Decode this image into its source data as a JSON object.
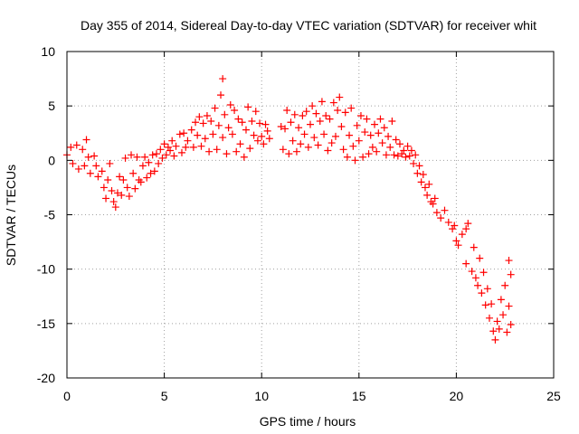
{
  "chart_data": {
    "type": "scatter",
    "title": "Day 355 of 2014, Sidereal Day-to-day VTEC variation (SDTVAR) for receiver whit",
    "xlabel": "GPS time / hours",
    "ylabel": "SDTVAR / TECUs",
    "xlim": [
      0,
      25
    ],
    "ylim": [
      -20,
      10
    ],
    "xticks": [
      0,
      5,
      10,
      15,
      20,
      25
    ],
    "yticks": [
      -20,
      -15,
      -10,
      -5,
      0,
      5,
      10
    ],
    "grid": true,
    "marker": "+",
    "color": "#ff0000",
    "series": [
      {
        "name": "SDTVAR",
        "points": [
          [
            0.0,
            0.5
          ],
          [
            0.2,
            1.2
          ],
          [
            0.3,
            -0.3
          ],
          [
            0.5,
            1.4
          ],
          [
            0.6,
            -0.8
          ],
          [
            0.8,
            1.0
          ],
          [
            0.9,
            -0.5
          ],
          [
            1.0,
            1.9
          ],
          [
            1.1,
            0.3
          ],
          [
            1.2,
            -1.2
          ],
          [
            1.4,
            0.4
          ],
          [
            1.5,
            -0.5
          ],
          [
            1.6,
            -1.5
          ],
          [
            1.8,
            -1.0
          ],
          [
            1.9,
            -2.5
          ],
          [
            2.0,
            -3.5
          ],
          [
            2.1,
            -1.8
          ],
          [
            2.2,
            -0.3
          ],
          [
            2.3,
            -2.8
          ],
          [
            2.4,
            -3.8
          ],
          [
            2.5,
            -4.3
          ],
          [
            2.6,
            -3.0
          ],
          [
            2.7,
            -1.5
          ],
          [
            2.8,
            -3.2
          ],
          [
            2.9,
            -1.8
          ],
          [
            3.0,
            0.2
          ],
          [
            3.1,
            -2.5
          ],
          [
            3.2,
            -3.3
          ],
          [
            3.3,
            0.5
          ],
          [
            3.4,
            -1.2
          ],
          [
            3.5,
            -2.6
          ],
          [
            3.6,
            0.3
          ],
          [
            3.7,
            -1.8
          ],
          [
            3.8,
            -2.0
          ],
          [
            3.9,
            -0.5
          ],
          [
            4.0,
            0.3
          ],
          [
            4.1,
            -1.6
          ],
          [
            4.2,
            -0.2
          ],
          [
            4.3,
            -1.2
          ],
          [
            4.4,
            0.5
          ],
          [
            4.5,
            -1.0
          ],
          [
            4.6,
            0.6
          ],
          [
            4.7,
            -0.3
          ],
          [
            4.8,
            1.0
          ],
          [
            4.9,
            0.2
          ],
          [
            5.0,
            1.5
          ],
          [
            5.1,
            0.5
          ],
          [
            5.2,
            1.2
          ],
          [
            5.3,
            0.9
          ],
          [
            5.4,
            1.8
          ],
          [
            5.5,
            0.4
          ],
          [
            5.6,
            1.3
          ],
          [
            5.8,
            2.4
          ],
          [
            5.9,
            0.7
          ],
          [
            6.0,
            2.5
          ],
          [
            6.1,
            1.2
          ],
          [
            6.2,
            1.8
          ],
          [
            6.4,
            2.8
          ],
          [
            6.5,
            1.2
          ],
          [
            6.6,
            3.5
          ],
          [
            6.7,
            2.3
          ],
          [
            6.8,
            4.0
          ],
          [
            6.9,
            1.3
          ],
          [
            7.0,
            3.4
          ],
          [
            7.1,
            2.0
          ],
          [
            7.2,
            4.1
          ],
          [
            7.3,
            0.8
          ],
          [
            7.4,
            3.6
          ],
          [
            7.5,
            2.4
          ],
          [
            7.6,
            4.8
          ],
          [
            7.7,
            1.0
          ],
          [
            7.8,
            3.2
          ],
          [
            7.9,
            6.0
          ],
          [
            8.0,
            2.1
          ],
          [
            8.0,
            7.5
          ],
          [
            8.1,
            4.2
          ],
          [
            8.2,
            0.6
          ],
          [
            8.3,
            3.0
          ],
          [
            8.4,
            5.1
          ],
          [
            8.5,
            2.4
          ],
          [
            8.6,
            4.6
          ],
          [
            8.7,
            0.8
          ],
          [
            8.8,
            3.8
          ],
          [
            8.9,
            1.5
          ],
          [
            9.0,
            3.5
          ],
          [
            9.1,
            0.3
          ],
          [
            9.2,
            2.8
          ],
          [
            9.3,
            4.9
          ],
          [
            9.4,
            1.1
          ],
          [
            9.5,
            3.6
          ],
          [
            9.6,
            2.3
          ],
          [
            9.7,
            4.5
          ],
          [
            9.8,
            1.8
          ],
          [
            9.9,
            3.4
          ],
          [
            10.0,
            2.2
          ],
          [
            10.1,
            1.5
          ],
          [
            10.2,
            3.3
          ],
          [
            10.3,
            2.7
          ],
          [
            10.4,
            2.0
          ],
          [
            11.0,
            3.1
          ],
          [
            11.1,
            1.0
          ],
          [
            11.2,
            2.9
          ],
          [
            11.3,
            4.6
          ],
          [
            11.4,
            0.6
          ],
          [
            11.5,
            3.5
          ],
          [
            11.6,
            1.8
          ],
          [
            11.7,
            4.2
          ],
          [
            11.8,
            0.8
          ],
          [
            11.9,
            3.0
          ],
          [
            12.0,
            1.5
          ],
          [
            12.1,
            4.1
          ],
          [
            12.2,
            2.4
          ],
          [
            12.3,
            4.5
          ],
          [
            12.4,
            1.2
          ],
          [
            12.5,
            3.3
          ],
          [
            12.6,
            5.0
          ],
          [
            12.7,
            2.1
          ],
          [
            12.8,
            4.3
          ],
          [
            12.9,
            1.4
          ],
          [
            13.0,
            3.6
          ],
          [
            13.1,
            5.4
          ],
          [
            13.2,
            2.4
          ],
          [
            13.3,
            4.1
          ],
          [
            13.4,
            0.9
          ],
          [
            13.5,
            3.8
          ],
          [
            13.6,
            1.6
          ],
          [
            13.7,
            5.3
          ],
          [
            13.8,
            2.2
          ],
          [
            13.9,
            4.6
          ],
          [
            14.0,
            5.8
          ],
          [
            14.1,
            3.1
          ],
          [
            14.2,
            1.0
          ],
          [
            14.3,
            4.4
          ],
          [
            14.4,
            0.3
          ],
          [
            14.5,
            2.3
          ],
          [
            14.6,
            4.8
          ],
          [
            14.7,
            1.3
          ],
          [
            14.8,
            0.0
          ],
          [
            14.9,
            3.2
          ],
          [
            15.0,
            1.8
          ],
          [
            15.1,
            4.1
          ],
          [
            15.2,
            0.3
          ],
          [
            15.3,
            2.6
          ],
          [
            15.4,
            3.8
          ],
          [
            15.5,
            0.6
          ],
          [
            15.6,
            2.3
          ],
          [
            15.7,
            1.2
          ],
          [
            15.8,
            3.3
          ],
          [
            15.9,
            0.8
          ],
          [
            16.0,
            2.5
          ],
          [
            16.1,
            3.8
          ],
          [
            16.2,
            1.6
          ],
          [
            16.3,
            3.0
          ],
          [
            16.4,
            0.5
          ],
          [
            16.5,
            2.2
          ],
          [
            16.6,
            1.2
          ],
          [
            16.7,
            3.6
          ],
          [
            16.8,
            0.5
          ],
          [
            16.9,
            1.9
          ],
          [
            17.0,
            0.4
          ],
          [
            17.1,
            1.5
          ],
          [
            17.2,
            0.6
          ],
          [
            17.3,
            0.9
          ],
          [
            17.4,
            0.3
          ],
          [
            17.5,
            1.3
          ],
          [
            17.6,
            0.4
          ],
          [
            17.7,
            0.9
          ],
          [
            17.8,
            -0.3
          ],
          [
            17.9,
            0.5
          ],
          [
            18.0,
            -1.2
          ],
          [
            18.1,
            -0.5
          ],
          [
            18.2,
            -2.0
          ],
          [
            18.3,
            -1.3
          ],
          [
            18.4,
            -2.5
          ],
          [
            18.5,
            -3.2
          ],
          [
            18.6,
            -2.2
          ],
          [
            18.7,
            -3.8
          ],
          [
            18.8,
            -4.0
          ],
          [
            18.9,
            -3.5
          ],
          [
            19.0,
            -4.8
          ],
          [
            19.2,
            -5.3
          ],
          [
            19.4,
            -4.6
          ],
          [
            19.6,
            -5.7
          ],
          [
            19.8,
            -6.3
          ],
          [
            19.9,
            -6.0
          ],
          [
            20.0,
            -7.4
          ],
          [
            20.1,
            -7.8
          ],
          [
            20.3,
            -6.8
          ],
          [
            20.5,
            -6.3
          ],
          [
            20.6,
            -5.8
          ],
          [
            20.5,
            -9.5
          ],
          [
            20.8,
            -10.2
          ],
          [
            20.9,
            -8.0
          ],
          [
            21.0,
            -10.8
          ],
          [
            21.1,
            -11.5
          ],
          [
            21.2,
            -9.0
          ],
          [
            21.3,
            -12.2
          ],
          [
            21.4,
            -10.3
          ],
          [
            21.5,
            -13.3
          ],
          [
            21.6,
            -11.8
          ],
          [
            21.7,
            -14.5
          ],
          [
            21.8,
            -13.2
          ],
          [
            21.9,
            -15.7
          ],
          [
            22.0,
            -16.5
          ],
          [
            22.1,
            -14.8
          ],
          [
            22.2,
            -15.5
          ],
          [
            22.3,
            -12.8
          ],
          [
            22.4,
            -14.2
          ],
          [
            22.5,
            -11.5
          ],
          [
            22.6,
            -15.8
          ],
          [
            22.7,
            -13.4
          ],
          [
            22.7,
            -9.2
          ],
          [
            22.8,
            -15.1
          ],
          [
            22.8,
            -10.5
          ]
        ]
      }
    ]
  }
}
